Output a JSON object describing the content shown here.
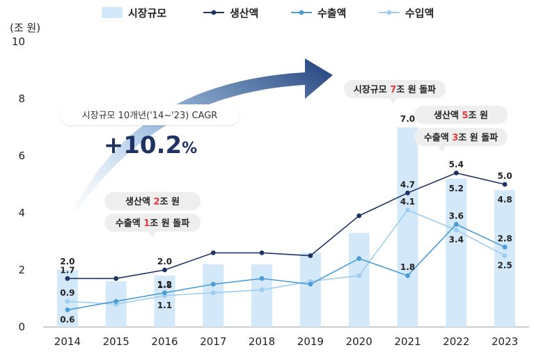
{
  "chart_data": {
    "type": "bar",
    "x": [
      "2014",
      "2015",
      "2016",
      "2017",
      "2018",
      "2019",
      "2020",
      "2021",
      "2022",
      "2023"
    ],
    "unit": "(조 원)",
    "ylim": [
      0,
      10
    ],
    "yticks": [
      0,
      2,
      4,
      6,
      8,
      10
    ],
    "grid": false,
    "legend_position": "top",
    "series": [
      {
        "name": "시장규모",
        "kind": "bar",
        "color": "#d3e8f8",
        "values": [
          2.0,
          1.6,
          1.8,
          2.2,
          2.2,
          2.6,
          3.3,
          7.0,
          5.2,
          4.8
        ]
      },
      {
        "name": "생산액",
        "kind": "line",
        "color": "#1f3263",
        "values": [
          1.7,
          1.7,
          2.0,
          2.6,
          2.6,
          2.5,
          3.9,
          4.7,
          5.4,
          5.0
        ]
      },
      {
        "name": "수출액",
        "kind": "line",
        "color": "#4a9bd6",
        "values": [
          0.6,
          0.9,
          1.2,
          1.5,
          1.7,
          1.5,
          2.4,
          1.8,
          3.6,
          2.8
        ]
      },
      {
        "name": "수입액",
        "kind": "line",
        "color": "#9fcdf0",
        "values": [
          0.9,
          0.8,
          1.1,
          1.2,
          1.3,
          1.6,
          1.8,
          4.1,
          3.4,
          2.5
        ]
      }
    ],
    "data_labels": [
      {
        "text": "2.0",
        "x": "2014",
        "y": 2.0,
        "pos": "above"
      },
      {
        "text": "1.7",
        "x": "2014",
        "y": 1.7,
        "pos": "above"
      },
      {
        "text": "0.9",
        "x": "2014",
        "y": 0.9,
        "pos": "above"
      },
      {
        "text": "0.6",
        "x": "2014",
        "y": 0.6,
        "pos": "below"
      },
      {
        "text": "2.0",
        "x": "2016",
        "y": 2.0,
        "pos": "above"
      },
      {
        "text": "1.8",
        "x": "2016",
        "y": 1.8,
        "pos": "below"
      },
      {
        "text": "1.2",
        "x": "2016",
        "y": 1.2,
        "pos": "above"
      },
      {
        "text": "1.1",
        "x": "2016",
        "y": 1.1,
        "pos": "below"
      },
      {
        "text": "7.0",
        "x": "2021",
        "y": 7.0,
        "pos": "above"
      },
      {
        "text": "4.7",
        "x": "2021",
        "y": 4.7,
        "pos": "above"
      },
      {
        "text": "4.1",
        "x": "2021",
        "y": 4.1,
        "pos": "above"
      },
      {
        "text": "1.8",
        "x": "2021",
        "y": 1.8,
        "pos": "above"
      },
      {
        "text": "5.4",
        "x": "2022",
        "y": 5.4,
        "pos": "above"
      },
      {
        "text": "5.2",
        "x": "2022",
        "y": 5.2,
        "pos": "below"
      },
      {
        "text": "3.6",
        "x": "2022",
        "y": 3.6,
        "pos": "above"
      },
      {
        "text": "3.4",
        "x": "2022",
        "y": 3.4,
        "pos": "below"
      },
      {
        "text": "5.0",
        "x": "2023",
        "y": 5.0,
        "pos": "above"
      },
      {
        "text": "4.8",
        "x": "2023",
        "y": 4.8,
        "pos": "below"
      },
      {
        "text": "2.8",
        "x": "2023",
        "y": 2.8,
        "pos": "above"
      },
      {
        "text": "2.5",
        "x": "2023",
        "y": 2.5,
        "pos": "below"
      }
    ],
    "annotations": [
      {
        "id": "bubble-2016-production",
        "parts": [
          {
            "t": "생산액 "
          },
          {
            "t": "2",
            "hl": true
          },
          {
            "t": "조 원"
          }
        ]
      },
      {
        "id": "bubble-2016-export",
        "parts": [
          {
            "t": "수출액 "
          },
          {
            "t": "1",
            "hl": true
          },
          {
            "t": "조 원 돌파"
          }
        ]
      },
      {
        "id": "bubble-2021-market",
        "parts": [
          {
            "t": "시장규모 "
          },
          {
            "t": "7",
            "hl": true
          },
          {
            "t": "조 원 돌파"
          }
        ]
      },
      {
        "id": "bubble-2022-production",
        "parts": [
          {
            "t": "생산액 "
          },
          {
            "t": "5",
            "hl": true
          },
          {
            "t": "조 원"
          }
        ]
      },
      {
        "id": "bubble-2022-export",
        "parts": [
          {
            "t": "수출액 "
          },
          {
            "t": "3",
            "hl": true
          },
          {
            "t": "조 원 돌파"
          }
        ]
      }
    ],
    "cagr": {
      "label": "시장규모 10개년('14~'23) CAGR",
      "value": "+10.2",
      "unit": "%"
    },
    "highlight_color": "#e8383d"
  }
}
